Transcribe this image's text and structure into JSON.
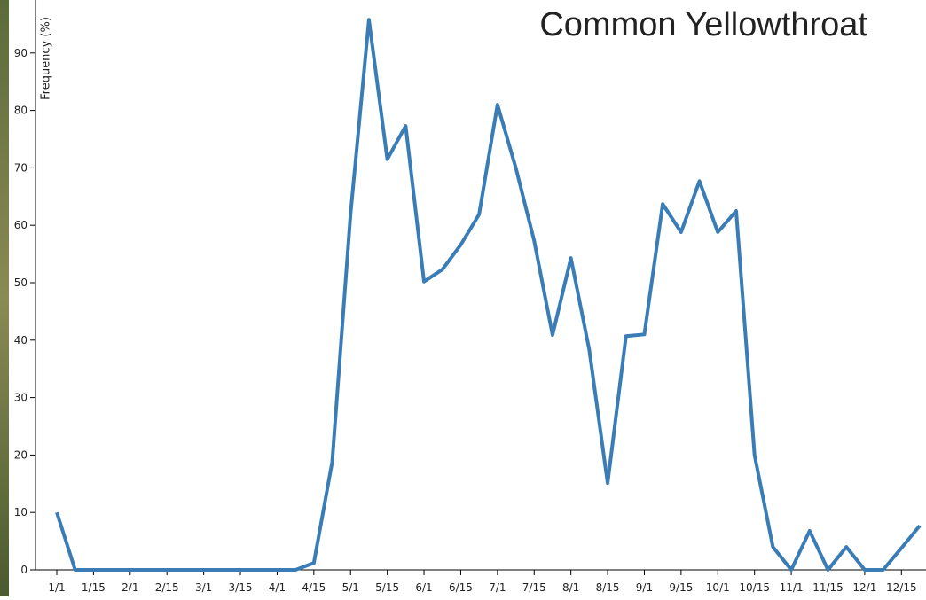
{
  "chart_data": {
    "type": "line",
    "title": "Common Yellowthroat",
    "y_label": "Frequency (%)",
    "categories": [
      "1/1",
      null,
      "1/15",
      null,
      "2/1",
      null,
      "2/15",
      null,
      "3/1",
      null,
      "3/15",
      null,
      "4/1",
      null,
      "4/15",
      null,
      "5/1",
      null,
      "5/15",
      null,
      "6/1",
      null,
      "6/15",
      null,
      "7/1",
      null,
      "7/15",
      null,
      "8/1",
      null,
      "8/15",
      null,
      "9/1",
      null,
      "9/15",
      null,
      "10/1",
      null,
      "10/15",
      null,
      "11/1",
      null,
      "11/15",
      null,
      "12/1",
      null,
      "12/15",
      null
    ],
    "series": [
      {
        "name": "Common Yellowthroat",
        "color": "#3a7db6",
        "values": [
          10,
          0,
          0,
          0,
          0,
          0,
          0,
          0,
          0,
          0,
          0,
          0,
          0,
          0,
          1.2,
          18.8,
          62,
          95.8,
          71.5,
          77.3,
          50.2,
          52.3,
          56.6,
          61.9,
          81,
          70,
          57.3,
          40.9,
          54.3,
          38.3,
          15.1,
          40.7,
          41,
          63.7,
          58.8,
          67.7,
          58.8,
          62.5,
          20,
          4,
          0,
          6.8,
          0,
          4,
          0,
          0,
          3.8,
          7.7
        ]
      }
    ],
    "ylim": [
      0,
      99
    ],
    "yticks": [
      0,
      10,
      20,
      30,
      40,
      50,
      60,
      70,
      80,
      90
    ]
  }
}
